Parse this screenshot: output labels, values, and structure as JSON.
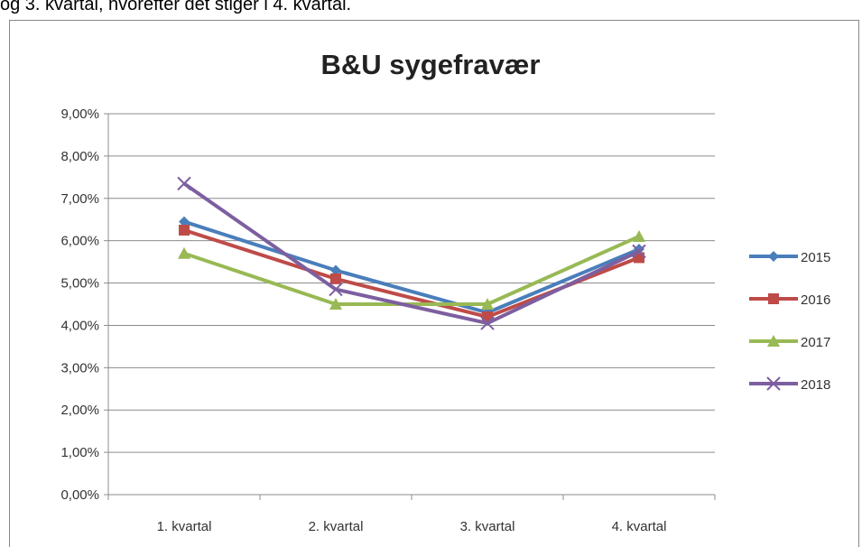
{
  "page_text": "og 3. kvartal, hvorefter det stiger i 4. kvartal.",
  "chart_data": {
    "type": "line",
    "title": "B&U sygefravær",
    "categories": [
      "1. kvartal",
      "2. kvartal",
      "3. kvartal",
      "4. kvartal"
    ],
    "series": [
      {
        "name": "2015",
        "color": "#4a7ebb",
        "marker": "diamond",
        "values": [
          6.45,
          5.3,
          4.3,
          5.8
        ]
      },
      {
        "name": "2016",
        "color": "#be4b48",
        "marker": "square",
        "values": [
          6.25,
          5.1,
          4.2,
          5.6
        ]
      },
      {
        "name": "2017",
        "color": "#98b954",
        "marker": "triangle",
        "values": [
          5.7,
          4.5,
          4.5,
          6.1
        ]
      },
      {
        "name": "2018",
        "color": "#7d5fa0",
        "marker": "x",
        "values": [
          7.35,
          4.85,
          4.05,
          5.75
        ]
      }
    ],
    "ylim": [
      0,
      9
    ],
    "yticks": [
      {
        "value": 0,
        "label": "0,00%"
      },
      {
        "value": 1,
        "label": "1,00%"
      },
      {
        "value": 2,
        "label": "2,00%"
      },
      {
        "value": 3,
        "label": "3,00%"
      },
      {
        "value": 4,
        "label": "4,00%"
      },
      {
        "value": 5,
        "label": "5,00%"
      },
      {
        "value": 6,
        "label": "6,00%"
      },
      {
        "value": 7,
        "label": "7,00%"
      },
      {
        "value": 8,
        "label": "8,00%"
      },
      {
        "value": 9,
        "label": "9,00%"
      }
    ],
    "grid": true,
    "legend": "right"
  }
}
